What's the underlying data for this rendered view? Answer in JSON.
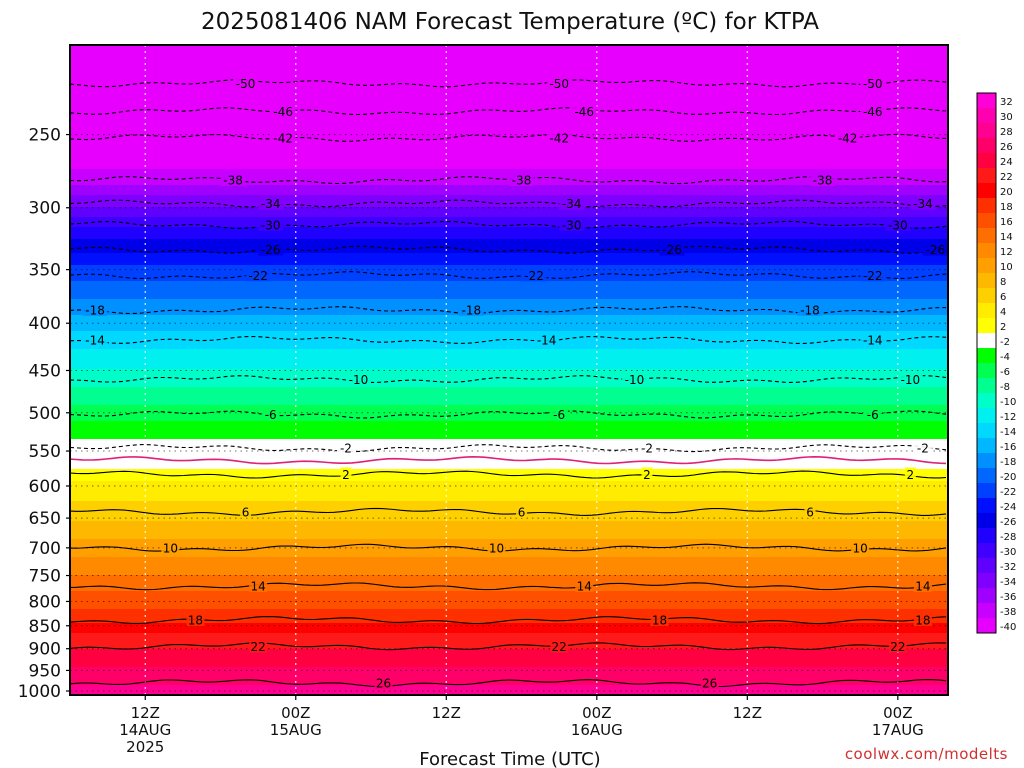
{
  "chart_data": {
    "type": "heatmap",
    "title": "2025081406 NAM Forecast Temperature (ºC) for KTPA",
    "xlabel": "Forecast Time (UTC)",
    "credit": "coolwx.com/modelts",
    "pressure_levels": [
      250,
      300,
      350,
      400,
      450,
      500,
      550,
      600,
      650,
      700,
      750,
      800,
      850,
      900,
      950,
      1000
    ],
    "y_tick_labels": [
      "250",
      "300",
      "350",
      "400",
      "450",
      "500",
      "550",
      "600",
      "650",
      "700",
      "750",
      "800",
      "850",
      "900",
      "950",
      "1000"
    ],
    "ylim": [
      1010,
      200
    ],
    "x_forecast_hours_range": [
      0,
      70
    ],
    "x_ticks": [
      {
        "hour": 6,
        "line1": "12Z",
        "line2": "14AUG",
        "line3": "2025"
      },
      {
        "hour": 18,
        "line1": "00Z",
        "line2": "15AUG",
        "line3": ""
      },
      {
        "hour": 30,
        "line1": "12Z",
        "line2": "",
        "line3": ""
      },
      {
        "hour": 42,
        "line1": "00Z",
        "line2": "16AUG",
        "line3": ""
      },
      {
        "hour": 54,
        "line1": "12Z",
        "line2": "",
        "line3": ""
      },
      {
        "hour": 66,
        "line1": "00Z",
        "line2": "17AUG",
        "line3": ""
      },
      {
        "hour": 78,
        "line1": "12Z",
        "line2": "",
        "line3": ""
      }
    ],
    "temperature_profile": [
      {
        "p": 200,
        "t": -55
      },
      {
        "p": 220,
        "t": -50
      },
      {
        "p": 235,
        "t": -46
      },
      {
        "p": 250,
        "t": -42
      },
      {
        "p": 280,
        "t": -38
      },
      {
        "p": 295,
        "t": -34
      },
      {
        "p": 310,
        "t": -30
      },
      {
        "p": 330,
        "t": -26
      },
      {
        "p": 352,
        "t": -22
      },
      {
        "p": 385,
        "t": -18
      },
      {
        "p": 415,
        "t": -14
      },
      {
        "p": 458,
        "t": -10
      },
      {
        "p": 500,
        "t": -6
      },
      {
        "p": 545,
        "t": -2
      },
      {
        "p": 575,
        "t": 2
      },
      {
        "p": 640,
        "t": 6
      },
      {
        "p": 700,
        "t": 10
      },
      {
        "p": 765,
        "t": 14
      },
      {
        "p": 830,
        "t": 18
      },
      {
        "p": 880,
        "t": 22
      },
      {
        "p": 960,
        "t": 26
      },
      {
        "p": 1010,
        "t": 28
      }
    ],
    "contours": [
      {
        "level": -50,
        "p": 220,
        "style": "dashed",
        "labels": [
          {
            "hour": 14,
            "text": "-50"
          },
          {
            "hour": 39,
            "text": "-50"
          },
          {
            "hour": 64,
            "text": "-50"
          }
        ]
      },
      {
        "level": -46,
        "p": 236,
        "style": "dashed",
        "labels": [
          {
            "hour": 17,
            "text": "-46"
          },
          {
            "hour": 41,
            "text": "-46"
          },
          {
            "hour": 64,
            "text": "-46"
          }
        ]
      },
      {
        "level": -42,
        "p": 252,
        "style": "dashed",
        "labels": [
          {
            "hour": 17,
            "text": "-42"
          },
          {
            "hour": 39,
            "text": "-42"
          },
          {
            "hour": 62,
            "text": "-42"
          }
        ]
      },
      {
        "level": -38,
        "p": 280,
        "style": "dashed",
        "labels": [
          {
            "hour": 13,
            "text": "-38"
          },
          {
            "hour": 36,
            "text": "-38"
          },
          {
            "hour": 60,
            "text": "-38"
          }
        ]
      },
      {
        "level": -34,
        "p": 297,
        "style": "dashed",
        "labels": [
          {
            "hour": 16,
            "text": "-34"
          },
          {
            "hour": 40,
            "text": "-34"
          },
          {
            "hour": 68,
            "text": "-34"
          }
        ]
      },
      {
        "level": -30,
        "p": 313,
        "style": "dashed",
        "labels": [
          {
            "hour": 16,
            "text": "-30"
          },
          {
            "hour": 40,
            "text": "-30"
          },
          {
            "hour": 66,
            "text": "-30"
          }
        ]
      },
      {
        "level": -26,
        "p": 333,
        "style": "dashed",
        "labels": [
          {
            "hour": 16,
            "text": "-26"
          },
          {
            "hour": 48,
            "text": "-26"
          },
          {
            "hour": 69,
            "text": "-26"
          }
        ]
      },
      {
        "level": -22,
        "p": 355,
        "style": "dashed",
        "labels": [
          {
            "hour": 15,
            "text": "-22"
          },
          {
            "hour": 37,
            "text": "-22"
          },
          {
            "hour": 64,
            "text": "-22"
          }
        ]
      },
      {
        "level": -18,
        "p": 387,
        "style": "dashed",
        "labels": [
          {
            "hour": 2,
            "text": "-18"
          },
          {
            "hour": 32,
            "text": "-18"
          },
          {
            "hour": 59,
            "text": "-18"
          }
        ]
      },
      {
        "level": -14,
        "p": 417,
        "style": "dashed",
        "labels": [
          {
            "hour": 2,
            "text": "-14"
          },
          {
            "hour": 38,
            "text": "-14"
          },
          {
            "hour": 64,
            "text": "-14"
          }
        ]
      },
      {
        "level": -10,
        "p": 460,
        "style": "dashed",
        "labels": [
          {
            "hour": 23,
            "text": "-10"
          },
          {
            "hour": 45,
            "text": "-10"
          },
          {
            "hour": 67,
            "text": "-10"
          }
        ]
      },
      {
        "level": -6,
        "p": 502,
        "style": "dashed",
        "labels": [
          {
            "hour": 16,
            "text": "-6"
          },
          {
            "hour": 39,
            "text": "-6"
          },
          {
            "hour": 64,
            "text": "-6"
          }
        ]
      },
      {
        "level": -2,
        "p": 546,
        "style": "dashed",
        "labels": [
          {
            "hour": 22,
            "text": "-2"
          },
          {
            "hour": 46,
            "text": "-2"
          },
          {
            "hour": 68,
            "text": "-2"
          }
        ]
      },
      {
        "level": 0,
        "p": 563,
        "style": "freezing",
        "labels": []
      },
      {
        "level": 2,
        "p": 583,
        "style": "solid",
        "labels": [
          {
            "hour": 22,
            "text": "2"
          },
          {
            "hour": 46,
            "text": "2"
          },
          {
            "hour": 67,
            "text": "2"
          }
        ]
      },
      {
        "level": 6,
        "p": 640,
        "style": "solid",
        "labels": [
          {
            "hour": 14,
            "text": "6"
          },
          {
            "hour": 36,
            "text": "6"
          },
          {
            "hour": 59,
            "text": "6"
          }
        ]
      },
      {
        "level": 10,
        "p": 700,
        "style": "solid",
        "labels": [
          {
            "hour": 8,
            "text": "10"
          },
          {
            "hour": 34,
            "text": "10"
          },
          {
            "hour": 63,
            "text": "10"
          }
        ]
      },
      {
        "level": 14,
        "p": 770,
        "style": "solid",
        "labels": [
          {
            "hour": 15,
            "text": "14"
          },
          {
            "hour": 41,
            "text": "14"
          },
          {
            "hour": 68,
            "text": "14"
          }
        ]
      },
      {
        "level": 18,
        "p": 838,
        "style": "solid",
        "labels": [
          {
            "hour": 10,
            "text": "18"
          },
          {
            "hour": 47,
            "text": "18"
          },
          {
            "hour": 68,
            "text": "18"
          }
        ]
      },
      {
        "level": 22,
        "p": 895,
        "style": "solid",
        "labels": [
          {
            "hour": 15,
            "text": "22"
          },
          {
            "hour": 39,
            "text": "22"
          },
          {
            "hour": 66,
            "text": "22"
          }
        ]
      },
      {
        "level": 26,
        "p": 980,
        "style": "solid",
        "labels": [
          {
            "hour": 25,
            "text": "26"
          },
          {
            "hour": 51,
            "text": "26"
          }
        ]
      }
    ],
    "colorbar": {
      "entries": [
        {
          "label": "32",
          "color": "#ff00d8"
        },
        {
          "label": "30",
          "color": "#ff00b0"
        },
        {
          "label": "28",
          "color": "#ff0090"
        },
        {
          "label": "26",
          "color": "#ff0068"
        },
        {
          "label": "24",
          "color": "#ff0040"
        },
        {
          "label": "22",
          "color": "#ff1a1a"
        },
        {
          "label": "20",
          "color": "#ff0000"
        },
        {
          "label": "18",
          "color": "#ff3000"
        },
        {
          "label": "16",
          "color": "#ff5000"
        },
        {
          "label": "14",
          "color": "#ff6e00"
        },
        {
          "label": "12",
          "color": "#ff8a00"
        },
        {
          "label": "10",
          "color": "#ffa000"
        },
        {
          "label": "8",
          "color": "#ffb800"
        },
        {
          "label": "6",
          "color": "#ffd000"
        },
        {
          "label": "4",
          "color": "#ffec00"
        },
        {
          "label": "2",
          "color": "#ffff00"
        },
        {
          "label": "-2",
          "color": "#ffffff"
        },
        {
          "label": "-4",
          "color": "#00ff00"
        },
        {
          "label": "-6",
          "color": "#00ff50"
        },
        {
          "label": "-8",
          "color": "#00ff90"
        },
        {
          "label": "-10",
          "color": "#00ffc8"
        },
        {
          "label": "-12",
          "color": "#00f0f0"
        },
        {
          "label": "-14",
          "color": "#00d8ff"
        },
        {
          "label": "-16",
          "color": "#00b8ff"
        },
        {
          "label": "-18",
          "color": "#0090ff"
        },
        {
          "label": "-20",
          "color": "#0068ff"
        },
        {
          "label": "-22",
          "color": "#0040ff"
        },
        {
          "label": "-24",
          "color": "#0010ff"
        },
        {
          "label": "-26",
          "color": "#0000e8"
        },
        {
          "label": "-28",
          "color": "#2000ff"
        },
        {
          "label": "-30",
          "color": "#4000ff"
        },
        {
          "label": "-32",
          "color": "#6000ff"
        },
        {
          "label": "-34",
          "color": "#8000ff"
        },
        {
          "label": "-36",
          "color": "#a000ff"
        },
        {
          "label": "-38",
          "color": "#c800ff"
        },
        {
          "label": "-40",
          "color": "#e800ff"
        }
      ]
    },
    "ground_color": "#a0522d",
    "freezing_line_color": "#e0207a"
  }
}
